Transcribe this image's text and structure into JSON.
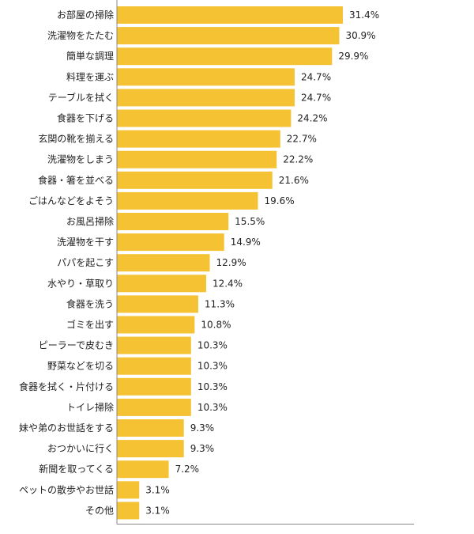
{
  "chart_data": {
    "type": "bar",
    "orientation": "horizontal",
    "categories": [
      "お部屋の掃除",
      "洗濯物をたたむ",
      "簡単な調理",
      "料理を運ぶ",
      "テーブルを拭く",
      "食器を下げる",
      "玄関の靴を揃える",
      "洗濯物をしまう",
      "食器・箸を並べる",
      "ごはんなどをよそう",
      "お風呂掃除",
      "洗濯物を干す",
      "パパを起こす",
      "水やり・草取り",
      "食器を洗う",
      "ゴミを出す",
      "ピーラーで皮むき",
      "野菜などを切る",
      "食器を拭く・片付ける",
      "トイレ掃除",
      "妹や弟のお世話をする",
      "おつかいに行く",
      "新聞を取ってくる",
      "ペットの散歩やお世話",
      "その他"
    ],
    "values": [
      31.4,
      30.9,
      29.9,
      24.7,
      24.7,
      24.2,
      22.7,
      22.2,
      21.6,
      19.6,
      15.5,
      14.9,
      12.9,
      12.4,
      11.3,
      10.8,
      10.3,
      10.3,
      10.3,
      10.3,
      9.3,
      9.3,
      7.2,
      3.1,
      3.1
    ],
    "value_labels": [
      "31.4%",
      "30.9%",
      "29.9%",
      "24.7%",
      "24.7%",
      "24.2%",
      "22.7%",
      "22.2%",
      "21.6%",
      "19.6%",
      "15.5%",
      "14.9%",
      "12.9%",
      "12.4%",
      "11.3%",
      "10.8%",
      "10.3%",
      "10.3%",
      "10.3%",
      "10.3%",
      "9.3%",
      "9.3%",
      "7.2%",
      "3.1%",
      "3.1%"
    ],
    "unit": "%",
    "xlim": [
      0,
      40
    ],
    "title": "",
    "xlabel": "",
    "ylabel": "",
    "grid": false,
    "legend": "none",
    "bar_color": "#F4C233",
    "axis_color": "#888888"
  }
}
